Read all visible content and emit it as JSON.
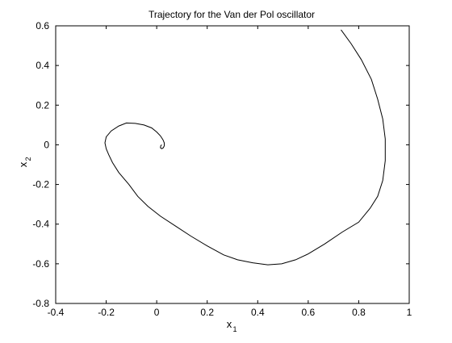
{
  "chart_data": {
    "type": "line",
    "title": "Trajectory for the Van der Pol oscillator",
    "xlabel": {
      "base": "x",
      "sub": "1"
    },
    "ylabel": {
      "base": "x",
      "sub": "2"
    },
    "xlim": [
      -0.4,
      1
    ],
    "ylim": [
      -0.8,
      0.6
    ],
    "xticks": [
      -0.4,
      -0.2,
      0,
      0.2,
      0.4,
      0.6,
      0.8,
      1
    ],
    "xtick_labels": [
      "-0.4",
      "-0.2",
      "0",
      "0.2",
      "0.4",
      "0.6",
      "0.8",
      "1"
    ],
    "yticks": [
      -0.8,
      -0.6,
      -0.4,
      -0.2,
      0,
      0.2,
      0.4,
      0.6
    ],
    "ytick_labels": [
      "-0.8",
      "-0.6",
      "-0.4",
      "-0.2",
      "0",
      "0.2",
      "0.4",
      "0.6"
    ],
    "grid": false,
    "line_color": "#000000",
    "series": [
      {
        "x": [
          0.73,
          0.77,
          0.81,
          0.85,
          0.875,
          0.895,
          0.905,
          0.905,
          0.895,
          0.875,
          0.845,
          0.8,
          0.735,
          0.665,
          0.6,
          0.55,
          0.495,
          0.44,
          0.38,
          0.32,
          0.265,
          0.2,
          0.135,
          0.075,
          0.015,
          -0.035,
          -0.075,
          -0.11,
          -0.15,
          -0.175,
          -0.19,
          -0.2,
          -0.205,
          -0.2,
          -0.18,
          -0.15,
          -0.12,
          -0.085,
          -0.05,
          -0.02,
          0.0,
          0.015,
          0.025,
          0.03,
          0.03,
          0.026,
          0.02,
          0.015,
          0.016,
          0.02
        ],
        "y": [
          0.58,
          0.51,
          0.43,
          0.33,
          0.23,
          0.13,
          0.03,
          -0.08,
          -0.18,
          -0.26,
          -0.32,
          -0.39,
          -0.44,
          -0.5,
          -0.55,
          -0.58,
          -0.6,
          -0.605,
          -0.595,
          -0.58,
          -0.555,
          -0.51,
          -0.46,
          -0.41,
          -0.36,
          -0.31,
          -0.26,
          -0.2,
          -0.14,
          -0.09,
          -0.05,
          -0.02,
          0.01,
          0.04,
          0.07,
          0.095,
          0.11,
          0.108,
          0.1,
          0.085,
          0.065,
          0.045,
          0.025,
          0.01,
          -0.005,
          -0.015,
          -0.02,
          -0.015,
          -0.005,
          0.0
        ]
      }
    ]
  }
}
